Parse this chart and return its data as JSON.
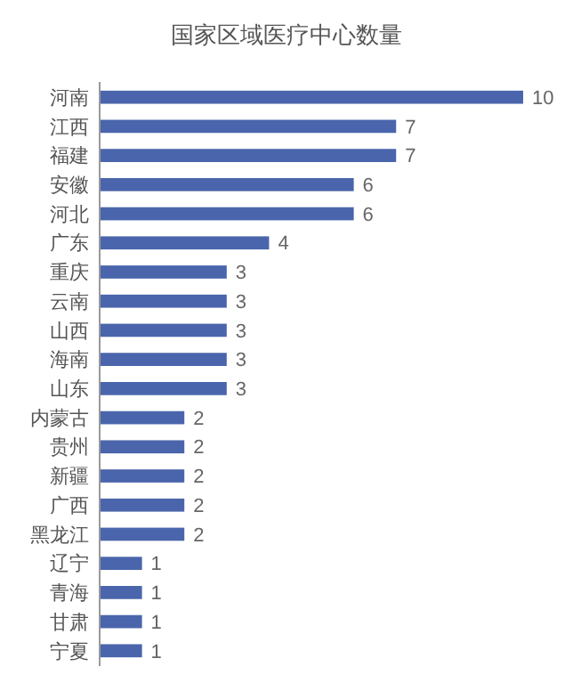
{
  "chart_data": {
    "type": "bar",
    "orientation": "horizontal",
    "title": "国家区域医疗中心数量",
    "categories": [
      "河南",
      "江西",
      "福建",
      "安徽",
      "河北",
      "广东",
      "重庆",
      "云南",
      "山西",
      "海南",
      "山东",
      "内蒙古",
      "贵州",
      "新疆",
      "广西",
      "黑龙江",
      "辽宁",
      "青海",
      "甘肃",
      "宁夏"
    ],
    "values": [
      10,
      7,
      7,
      6,
      6,
      4,
      3,
      3,
      3,
      3,
      3,
      2,
      2,
      2,
      2,
      2,
      1,
      1,
      1,
      1
    ],
    "color": "#4a65ab",
    "data_labels": true
  }
}
